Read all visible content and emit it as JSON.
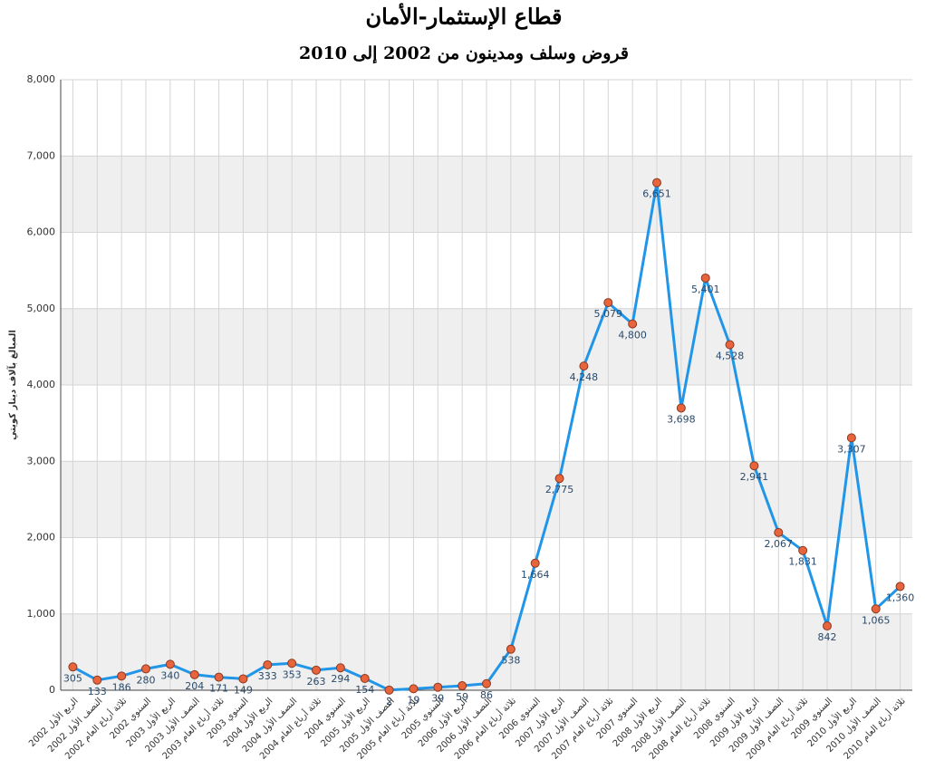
{
  "chart_data": {
    "type": "line",
    "title": "قطاع الإستثمار-الأمان",
    "subtitle": "قروض وسلف ومدينون من 2002 إلى 2010",
    "y_label": "المبالغ بآلاف دينار كويتي",
    "categories": [
      "الربع الأول 2002",
      "النصف الأول 2002",
      "ثلاثة أرباع العام 2002",
      "السنوي 2002",
      "الربع الأول 2003",
      "النصف الأول 2003",
      "ثلاثة أرباع العام 2003",
      "السنوي 2003",
      "الربع الأول 2004",
      "النصف الأول 2004",
      "ثلاثة أرباع العام 2004",
      "السنوي 2004",
      "الربع الأول 2005",
      "النصف الأول 2005",
      "ثلاثة أرباع العام 2005",
      "السنوي 2005",
      "الربع الأول 2006",
      "النصف الأول 2006",
      "ثلاثة أرباع العام 2006",
      "السنوي 2006",
      "الربع الأول 2007",
      "النصف الأول 2007",
      "ثلاثة أرباع العام 2007",
      "السنوي 2007",
      "الربع الأول 2008",
      "النصف الأول 2008",
      "ثلاثة أرباع العام 2008",
      "السنوي 2008",
      "الربع الأول 2009",
      "النصف الأول 2009",
      "ثلاثة أرباع العام 2009",
      "السنوي 2009",
      "الربع الأول 2010",
      "النصف الأول 2010",
      "ثلاثة أرباع العام 2010"
    ],
    "values": [
      305,
      133,
      186,
      280,
      340,
      204,
      171,
      149,
      333,
      353,
      263,
      294,
      154,
      2,
      19,
      39,
      59,
      86,
      538,
      1664,
      2775,
      4248,
      5079,
      4800,
      6651,
      3698,
      5401,
      4528,
      2941,
      2067,
      1831,
      842,
      3307,
      1065,
      1360
    ],
    "value_labels": [
      "305",
      "133",
      "186",
      "280",
      "340",
      "204",
      "171",
      "149",
      "333",
      "353",
      "263",
      "294",
      "154",
      "2",
      "19",
      "39",
      "59",
      "86",
      "538",
      "1,664",
      "2,775",
      "4,248",
      "5,079",
      "4,800",
      "6,651",
      "3,698",
      "5,401",
      "4,528",
      "2,941",
      "2,067",
      "1,831",
      "842",
      "3,307",
      "1,065",
      "1,360"
    ],
    "color": "#2196e8",
    "marker_color": "#e8643c",
    "ylim": [
      0,
      8000
    ],
    "yticks": [
      0,
      {
        "value": 1000,
        "label": "1,000"
      },
      {
        "value": 2000,
        "label": "2,000"
      },
      {
        "value": 3000,
        "label": "3,000"
      },
      {
        "value": 4000,
        "label": "4,000"
      },
      {
        "value": 5000,
        "label": "5,000"
      },
      {
        "value": 6000,
        "label": "6,000"
      },
      {
        "value": 7000,
        "label": "7,000"
      },
      {
        "value": 8000,
        "label": "8,000"
      }
    ],
    "grid": true
  }
}
